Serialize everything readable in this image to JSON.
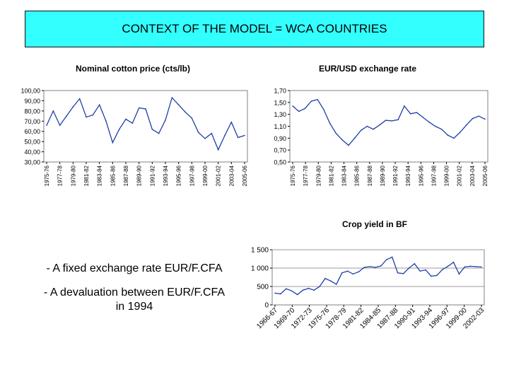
{
  "header": {
    "title": "CONTEXT OF THE MODEL = WCA COUNTRIES"
  },
  "bullets": [
    "- A fixed exchange rate EUR/F.CFA",
    "- A devaluation between EUR/F.CFA in 1994"
  ],
  "colors": {
    "title_bg": "#33ffff",
    "line": "#1f3fa8",
    "plot_border": "#808080"
  },
  "chart_data": [
    {
      "type": "line",
      "title": "Nominal cotton price (cts/lb)",
      "ylim": [
        30,
        100
      ],
      "yticks": [
        "30,00",
        "40,00",
        "50,00",
        "60,00",
        "70,00",
        "80,00",
        "90,00",
        "100,00"
      ],
      "xtick_labels": [
        "1975-76",
        "1977-78",
        "1979-80",
        "1981-82",
        "1983-84",
        "1985-86",
        "1987-88",
        "1989-90",
        "1991-92",
        "1993-94",
        "1995-96",
        "1997-98",
        "1999-00",
        "2001-02",
        "2003-04",
        "2005-06"
      ],
      "series": [
        {
          "values": [
            66,
            80,
            66,
            75,
            84,
            92,
            74,
            76,
            86,
            70,
            49,
            62,
            72,
            68,
            83,
            82,
            62,
            58,
            71,
            93,
            86,
            79,
            73,
            59,
            53,
            58,
            42,
            56,
            69,
            54,
            56
          ]
        }
      ],
      "grid": false
    },
    {
      "type": "line",
      "title": "EUR/USD exchange rate",
      "ylim": [
        0.5,
        1.7
      ],
      "yticks": [
        "0,50",
        "0,70",
        "0,90",
        "1,10",
        "1,30",
        "1,50",
        "1,70"
      ],
      "xtick_labels": [
        "1975-76",
        "1977-78",
        "1979-80",
        "1981-82",
        "1983-84",
        "1985-86",
        "1987-88",
        "1989-90",
        "1991-92",
        "1993-94",
        "1995-96",
        "1997-98",
        "1999-00",
        "2001-02",
        "2003-04",
        "2005-06"
      ],
      "series": [
        {
          "values": [
            1.44,
            1.35,
            1.4,
            1.52,
            1.55,
            1.38,
            1.15,
            0.98,
            0.87,
            0.78,
            0.9,
            1.03,
            1.1,
            1.05,
            1.12,
            1.2,
            1.19,
            1.21,
            1.44,
            1.31,
            1.33,
            1.25,
            1.17,
            1.1,
            1.05,
            0.95,
            0.9,
            1.0,
            1.12,
            1.23,
            1.27,
            1.22
          ]
        }
      ],
      "grid": false
    },
    {
      "type": "line",
      "title": "Crop yield in BF",
      "ylim": [
        0,
        1500
      ],
      "yticks": [
        "0",
        "500",
        "1 000",
        "1 500"
      ],
      "xtick_labels": [
        "1966-67",
        "1969-70",
        "1972-73",
        "1975-76",
        "1978-79",
        "1981-82",
        "1984-85",
        "1987-88",
        "1990-91",
        "1993-94",
        "1996-97",
        "1999-00",
        "2002-03"
      ],
      "series": [
        {
          "values": [
            320,
            300,
            440,
            380,
            280,
            400,
            450,
            400,
            500,
            720,
            650,
            560,
            870,
            920,
            840,
            900,
            1020,
            1040,
            1020,
            1060,
            1230,
            1300,
            870,
            850,
            1000,
            1120,
            920,
            950,
            780,
            800,
            960,
            1050,
            1160,
            840,
            1030,
            1050,
            1040,
            1030
          ]
        }
      ],
      "grid": true
    }
  ]
}
